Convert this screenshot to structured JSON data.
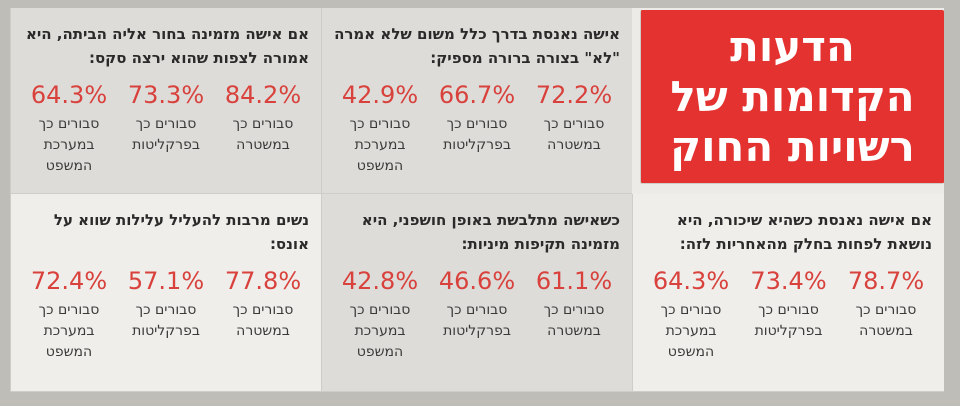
{
  "headline": "הדעות הקדומות של רשויות החוק",
  "labels": {
    "police": "סבורים כך במשטרה",
    "prosecution": "סבורים כך בפרקליטות",
    "court": "סבורים כך במערכת המשפט"
  },
  "panels": [
    {
      "question": "אישה נאנסת בדרך כלל משום שלא אמרה \"לא\" בצורה ברורה מספיק:",
      "police": "72.2%",
      "prosecution": "66.7%",
      "court": "42.9%"
    },
    {
      "question": "אם אישה מזמינה בחור אליה הביתה, היא אמורה לצפות שהוא ירצה סקס:",
      "police": "84.2%",
      "prosecution": "73.3%",
      "court": "64.3%"
    },
    {
      "question": "אם אישה נאנסת כשהיא שיכורה, היא נושאת לפחות בחלק מהאחריות לזה:",
      "police": "78.7%",
      "prosecution": "73.4%",
      "court": "64.3%"
    },
    {
      "question": "כשאישה מתלבשת באופן חושפני, היא מזמינה תקיפות מיניות:",
      "police": "61.1%",
      "prosecution": "46.6%",
      "court": "42.8%"
    },
    {
      "question": "נשים מרבות להעליל עלילות שווא על אונס:",
      "police": "77.8%",
      "prosecution": "57.1%",
      "court": "72.4%"
    }
  ]
}
